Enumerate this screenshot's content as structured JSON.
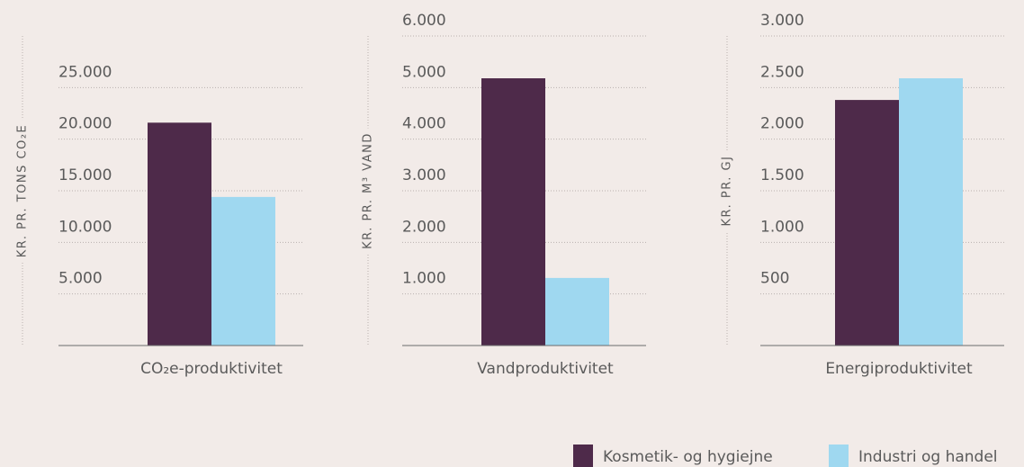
{
  "chart_data": [
    {
      "type": "bar",
      "categories": [
        "CO₂e-produktivitet"
      ],
      "y_label": "KR. PR. TONS CO₂E",
      "ylim": [
        0,
        30000
      ],
      "yticks": [
        {
          "value": 5000,
          "label": "5.000"
        },
        {
          "value": 10000,
          "label": "10.000"
        },
        {
          "value": 15000,
          "label": "15.000"
        },
        {
          "value": 20000,
          "label": "20.000"
        },
        {
          "value": 25000,
          "label": "25.000"
        }
      ],
      "grid": true,
      "series": [
        {
          "name": "Kosmetik- og hygiejne",
          "color": "#4e2a4a",
          "values": [
            21600
          ]
        },
        {
          "name": "Industri og handel",
          "color": "#9fd8f0",
          "values": [
            14400
          ]
        }
      ]
    },
    {
      "type": "bar",
      "categories": [
        "Vandproduktivitet"
      ],
      "y_label": "KR. PR. M³ VAND",
      "ylim": [
        0,
        6000
      ],
      "yticks": [
        {
          "value": 1000,
          "label": "1.000"
        },
        {
          "value": 2000,
          "label": "2.000"
        },
        {
          "value": 3000,
          "label": "3.000"
        },
        {
          "value": 4000,
          "label": "4.000"
        },
        {
          "value": 5000,
          "label": "5.000"
        },
        {
          "value": 6000,
          "label": "6.000"
        }
      ],
      "grid": true,
      "series": [
        {
          "color": "#4e2a4a",
          "values": [
            5180
          ]
        },
        {
          "color": "#9fd8f0",
          "values": [
            1310
          ]
        }
      ]
    },
    {
      "type": "bar",
      "categories": [
        "Energiproduktivitet"
      ],
      "y_label": "KR. PR. GJ",
      "ylim": [
        0,
        3000
      ],
      "yticks": [
        500,
        {
          "value": 1000,
          "label": "1.000"
        },
        {
          "value": 1500,
          "label": "1.500"
        },
        {
          "value": 2000,
          "label": "2.000"
        },
        {
          "value": 2500,
          "label": "2.500"
        },
        {
          "value": 3000,
          "label": "3.000"
        }
      ],
      "grid": true,
      "series": [
        {
          "color": "#4e2a4a",
          "values": [
            2380
          ]
        },
        {
          "color": "#9fd8f0",
          "values": [
            2590
          ]
        }
      ]
    }
  ]
}
